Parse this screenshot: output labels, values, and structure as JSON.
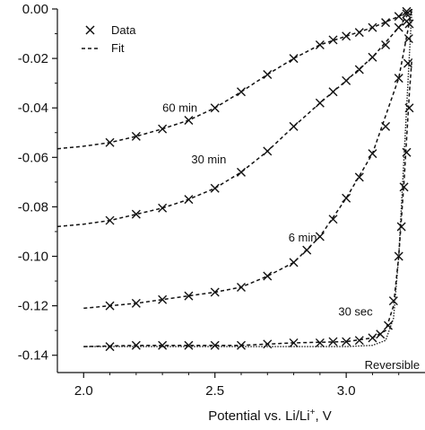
{
  "chart_data": {
    "type": "line",
    "title": "",
    "xlabel": {
      "prefix": "Potential vs. Li/Li",
      "sup": "+",
      "suffix": ", V"
    },
    "ylabel": "",
    "xlim": [
      1.9,
      3.3
    ],
    "ylim": [
      -0.147,
      0.0
    ],
    "x_ticks": [
      2.0,
      2.5,
      3.0
    ],
    "x_tick_labels": [
      "2.0",
      "2.5",
      "3.0"
    ],
    "y_ticks": [
      0.0,
      -0.02,
      -0.04,
      -0.06,
      -0.08,
      -0.1,
      -0.12,
      -0.14
    ],
    "y_tick_labels": [
      "0.00",
      "-0.02",
      "-0.04",
      "-0.06",
      "-0.08",
      "-0.10",
      "-0.12",
      "-0.14"
    ],
    "grid": false,
    "legend": {
      "placement": "top-left",
      "entries": [
        {
          "label": "Data",
          "style": "x-marker"
        },
        {
          "label": "Fit",
          "style": "dashed-line"
        }
      ]
    },
    "series": [
      {
        "name": "60 min",
        "data_x": [
          2.1,
          2.2,
          2.3,
          2.4,
          2.5,
          2.6,
          2.7,
          2.8,
          2.9,
          2.95,
          3.0,
          3.05,
          3.1,
          3.15,
          3.2,
          3.23
        ],
        "data_y": [
          -0.054,
          -0.0515,
          -0.0485,
          -0.045,
          -0.04,
          -0.0335,
          -0.0265,
          -0.02,
          -0.0145,
          -0.0125,
          -0.011,
          -0.0095,
          -0.0075,
          -0.0055,
          -0.003,
          -0.001
        ],
        "fit_x": [
          1.9,
          2.0,
          2.1,
          2.2,
          2.3,
          2.4,
          2.5,
          2.6,
          2.7,
          2.8,
          2.9,
          3.0,
          3.1,
          3.2,
          3.25
        ],
        "fit_y": [
          -0.0565,
          -0.0555,
          -0.054,
          -0.0515,
          -0.0485,
          -0.045,
          -0.04,
          -0.0335,
          -0.0265,
          -0.02,
          -0.0145,
          -0.011,
          -0.0075,
          -0.003,
          -0.0005
        ]
      },
      {
        "name": "30 min",
        "data_x": [
          2.1,
          2.2,
          2.3,
          2.4,
          2.5,
          2.6,
          2.7,
          2.8,
          2.9,
          2.95,
          3.0,
          3.05,
          3.1,
          3.15,
          3.2,
          3.23
        ],
        "data_y": [
          -0.0855,
          -0.083,
          -0.0805,
          -0.077,
          -0.0725,
          -0.066,
          -0.0575,
          -0.0475,
          -0.038,
          -0.0335,
          -0.029,
          -0.0245,
          -0.0195,
          -0.0145,
          -0.0075,
          -0.002
        ],
        "fit_x": [
          1.9,
          2.0,
          2.1,
          2.2,
          2.3,
          2.4,
          2.5,
          2.6,
          2.7,
          2.8,
          2.9,
          3.0,
          3.1,
          3.2,
          3.25
        ],
        "fit_y": [
          -0.088,
          -0.087,
          -0.0855,
          -0.083,
          -0.0805,
          -0.077,
          -0.0725,
          -0.066,
          -0.0575,
          -0.0475,
          -0.038,
          -0.029,
          -0.0195,
          -0.0075,
          0.0
        ]
      },
      {
        "name": "6 min",
        "data_x": [
          2.1,
          2.2,
          2.3,
          2.4,
          2.5,
          2.6,
          2.7,
          2.8,
          2.85,
          2.9,
          2.95,
          3.0,
          3.05,
          3.1,
          3.15,
          3.2,
          3.23
        ],
        "data_y": [
          -0.12,
          -0.119,
          -0.1175,
          -0.116,
          -0.1145,
          -0.1125,
          -0.108,
          -0.1025,
          -0.0975,
          -0.092,
          -0.085,
          -0.0765,
          -0.068,
          -0.0585,
          -0.0475,
          -0.028,
          -0.005
        ],
        "fit_x": [
          2.0,
          2.1,
          2.2,
          2.3,
          2.4,
          2.5,
          2.6,
          2.7,
          2.8,
          2.9,
          3.0,
          3.1,
          3.2,
          3.25
        ],
        "fit_y": [
          -0.121,
          -0.12,
          -0.119,
          -0.1175,
          -0.116,
          -0.1145,
          -0.1125,
          -0.108,
          -0.1025,
          -0.092,
          -0.0765,
          -0.0585,
          -0.028,
          0.0
        ]
      },
      {
        "name": "30 sec",
        "data_x": [
          2.1,
          2.2,
          2.3,
          2.4,
          2.5,
          2.6,
          2.7,
          2.8,
          2.9,
          2.95,
          3.0,
          3.05,
          3.1,
          3.13,
          3.16,
          3.18,
          3.2,
          3.21,
          3.22,
          3.23,
          3.24
        ],
        "data_y": [
          -0.1365,
          -0.136,
          -0.136,
          -0.136,
          -0.136,
          -0.136,
          -0.1355,
          -0.135,
          -0.135,
          -0.1345,
          -0.1345,
          -0.134,
          -0.133,
          -0.1315,
          -0.128,
          -0.118,
          -0.1,
          -0.088,
          -0.072,
          -0.058,
          -0.04
        ],
        "fit_x": [
          2.0,
          2.2,
          2.4,
          2.6,
          2.8,
          3.0,
          3.1,
          3.15,
          3.18,
          3.2,
          3.22,
          3.24,
          3.25
        ],
        "fit_y": [
          -0.1365,
          -0.136,
          -0.136,
          -0.136,
          -0.135,
          -0.1345,
          -0.133,
          -0.13,
          -0.12,
          -0.1,
          -0.07,
          -0.035,
          -0.02
        ]
      }
    ],
    "extra_markers": [
      {
        "x": 3.235,
        "y": -0.022
      },
      {
        "x": 3.238,
        "y": -0.012
      },
      {
        "x": 3.24,
        "y": -0.006
      }
    ],
    "reference_curve": {
      "name": "Reversible",
      "x": [
        2.0,
        2.5,
        3.0,
        3.1,
        3.15,
        3.18,
        3.2,
        3.22,
        3.24,
        3.25
      ],
      "y": [
        -0.1365,
        -0.1365,
        -0.1365,
        -0.136,
        -0.134,
        -0.125,
        -0.1,
        -0.06,
        -0.02,
        0.0
      ]
    },
    "annotations": [
      {
        "text": "60 min",
        "x": 2.3,
        "y": -0.0415
      },
      {
        "text": "30 min",
        "x": 2.41,
        "y": -0.0625
      },
      {
        "text": "6 min",
        "x": 2.78,
        "y": -0.094
      },
      {
        "text": "30 sec",
        "x": 2.97,
        "y": -0.124
      },
      {
        "text": "Reversible",
        "x": 3.07,
        "y": -0.1455
      }
    ]
  }
}
